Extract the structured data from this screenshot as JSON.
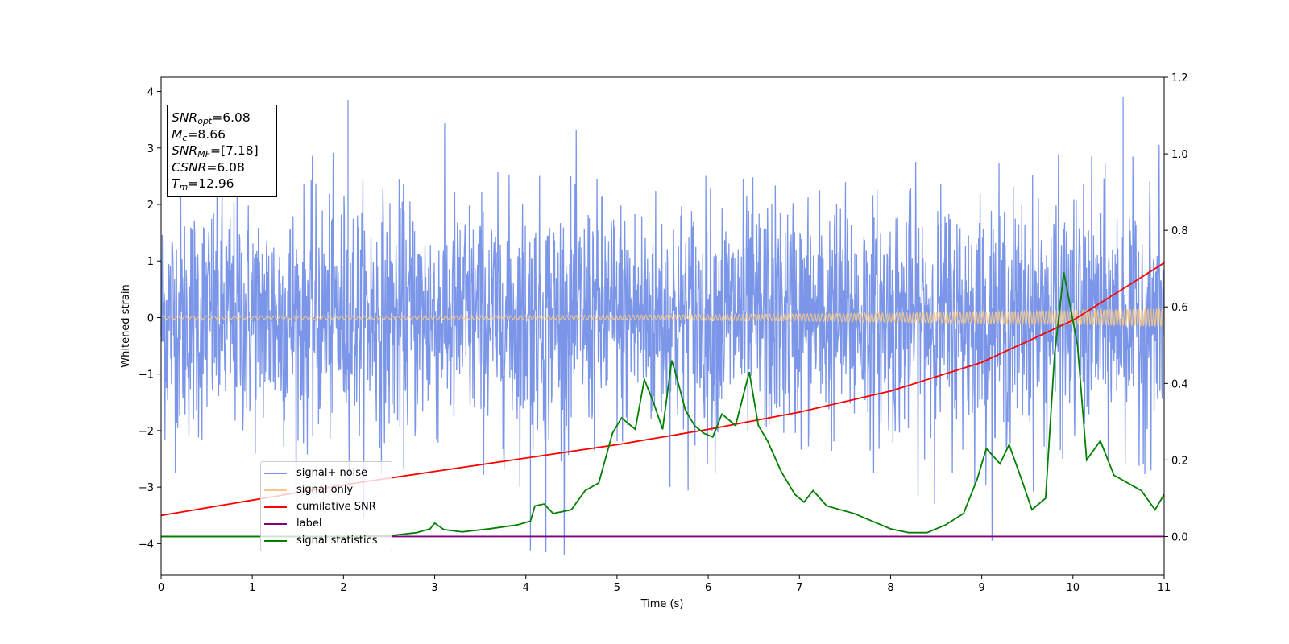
{
  "chart_data": {
    "type": "line",
    "title": "",
    "xlabel": "Time (s)",
    "ylabel": "Whitened strain",
    "xlim": [
      0,
      11
    ],
    "ylim": [
      -4.55,
      4.25
    ],
    "y2lim": [
      -0.1,
      1.2
    ],
    "x_ticks": [
      "0",
      "1",
      "2",
      "3",
      "4",
      "5",
      "6",
      "7",
      "8",
      "9",
      "10",
      "11"
    ],
    "y_ticks": [
      "−4",
      "−3",
      "−2",
      "−1",
      "0",
      "1",
      "2",
      "3",
      "4"
    ],
    "y2_ticks": [
      "0.0",
      "0.2",
      "0.4",
      "0.6",
      "0.8",
      "1.0",
      "1.2"
    ],
    "grid": false,
    "legend_position": "lower-left",
    "annotation": {
      "snr_opt": "=6.08",
      "mc": "=8.66",
      "snr_mf": "=[7.18]",
      "csnr": "=6.08",
      "tm": "=12.96"
    },
    "series": [
      {
        "name": "signal+ noise",
        "axis": "left",
        "color": "#7b96e8",
        "description_range": [
          -4.2,
          3.9
        ],
        "noise_std": 1.05,
        "notable_peaks": [
          {
            "x": 2.05,
            "y": 3.85
          },
          {
            "x": 10.55,
            "y": 3.9
          },
          {
            "x": 4.22,
            "y": -4.15
          },
          {
            "x": 4.05,
            "y": -4.12
          }
        ]
      },
      {
        "name": "signal only",
        "axis": "left",
        "color": "#f5c88a",
        "amplitude_start": 0.03,
        "amplitude_end": 0.16
      },
      {
        "name": "cumilative SNR",
        "axis": "right",
        "color": "#ff0000",
        "x": [
          0,
          1,
          2,
          3,
          4,
          5,
          6,
          7,
          8,
          9,
          10,
          11
        ],
        "values": [
          0.055,
          0.095,
          0.135,
          0.17,
          0.205,
          0.24,
          0.28,
          0.325,
          0.38,
          0.455,
          0.565,
          0.715
        ]
      },
      {
        "name": "label",
        "axis": "right",
        "color": "#800080",
        "x": [
          0,
          11
        ],
        "values": [
          0.0,
          0.0
        ]
      },
      {
        "name": "signal statistics",
        "axis": "right",
        "color": "#008000",
        "x": [
          0,
          0.5,
          1,
          1.5,
          2,
          2.5,
          2.8,
          2.95,
          3.0,
          3.1,
          3.3,
          3.6,
          3.9,
          4.05,
          4.1,
          4.2,
          4.3,
          4.5,
          4.65,
          4.8,
          4.95,
          5.05,
          5.2,
          5.3,
          5.4,
          5.5,
          5.6,
          5.65,
          5.75,
          5.85,
          5.95,
          6.05,
          6.15,
          6.3,
          6.45,
          6.55,
          6.65,
          6.8,
          6.95,
          7.05,
          7.15,
          7.3,
          7.45,
          7.6,
          7.8,
          8.0,
          8.2,
          8.4,
          8.6,
          8.8,
          8.95,
          9.05,
          9.2,
          9.3,
          9.45,
          9.55,
          9.7,
          9.8,
          9.9,
          10.05,
          10.15,
          10.3,
          10.45,
          10.6,
          10.75,
          10.9,
          11.0
        ],
        "values": [
          0.0,
          0.0,
          0.0,
          0.0,
          0.0,
          0.002,
          0.01,
          0.02,
          0.035,
          0.018,
          0.012,
          0.02,
          0.03,
          0.04,
          0.08,
          0.085,
          0.06,
          0.07,
          0.12,
          0.14,
          0.27,
          0.31,
          0.28,
          0.41,
          0.35,
          0.28,
          0.46,
          0.42,
          0.33,
          0.29,
          0.27,
          0.26,
          0.32,
          0.29,
          0.43,
          0.29,
          0.25,
          0.17,
          0.11,
          0.09,
          0.12,
          0.08,
          0.07,
          0.06,
          0.04,
          0.02,
          0.01,
          0.01,
          0.03,
          0.06,
          0.15,
          0.23,
          0.19,
          0.24,
          0.14,
          0.07,
          0.1,
          0.48,
          0.69,
          0.5,
          0.2,
          0.25,
          0.16,
          0.14,
          0.12,
          0.07,
          0.11
        ]
      }
    ]
  }
}
